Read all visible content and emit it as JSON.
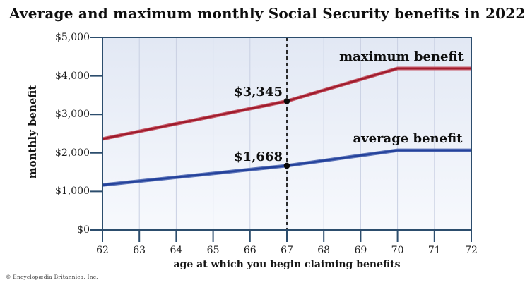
{
  "copyright": "© Encyclopædia Britannica, Inc.",
  "chart_data": {
    "type": "line",
    "title": "Average and maximum monthly Social Security benefits in 2022",
    "xlabel": "age at which you begin claiming benefits",
    "ylabel": "monthly benefit",
    "x": [
      62,
      63,
      64,
      65,
      66,
      67,
      68,
      69,
      70,
      71,
      72
    ],
    "x_tick_labels": [
      "62",
      "63",
      "64",
      "65",
      "66",
      "67",
      "68",
      "69",
      "70",
      "71",
      "72"
    ],
    "xlim": [
      62,
      72
    ],
    "y_ticks": [
      0,
      1000,
      2000,
      3000,
      4000,
      5000
    ],
    "y_tick_labels": [
      "$0",
      "$1,000",
      "$2,000",
      "$3,000",
      "$4,000",
      "$5,000"
    ],
    "ylim": [
      0,
      5000
    ],
    "grid": "vertical-only",
    "legend_position": "inline-labels-above-lines",
    "series": [
      {
        "name": "maximum benefit",
        "color": "#9e1b2c",
        "edge_color": "#c65766",
        "values": [
          2364,
          2560,
          2757,
          2953,
          3149,
          3345,
          3628,
          3911,
          4194,
          4194,
          4194
        ]
      },
      {
        "name": "average benefit",
        "color": "#24429b",
        "edge_color": "#5a72b8",
        "values": [
          1168,
          1268,
          1368,
          1468,
          1568,
          1668,
          1801,
          1935,
          2068,
          2068,
          2068
        ]
      }
    ],
    "annotations": [
      {
        "series": "maximum benefit",
        "x": 67,
        "y": 3345,
        "label": "$3,345"
      },
      {
        "series": "average benefit",
        "x": 67,
        "y": 1668,
        "label": "$1,668"
      }
    ],
    "reference_line": {
      "type": "vertical-dashed",
      "x": 67
    },
    "colors": {
      "axis": "#2c4d6d",
      "gridline": "#c9d0e3",
      "plot_bg_top": "#e2e8f4",
      "plot_bg_bottom": "#f7f9fd",
      "annotation_dot": "#0a0a0a",
      "reference_line": "#151515",
      "page_bg": "#ffffff",
      "text": "#121212"
    }
  }
}
